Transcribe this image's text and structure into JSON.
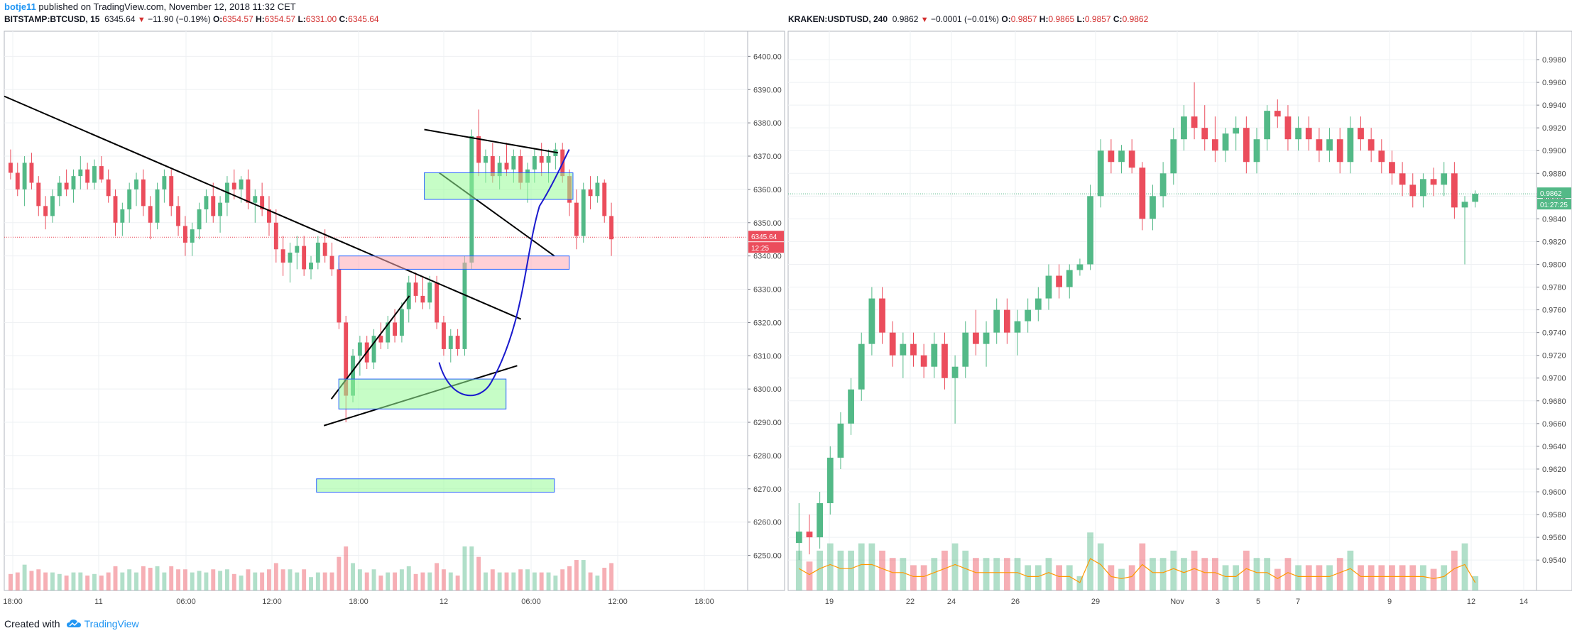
{
  "header": {
    "author": "botje11",
    "published": "published on TradingView.com, November 12, 2018 11:32 CET"
  },
  "footer": {
    "created_with": "Created with",
    "brand": "TradingView"
  },
  "panels": {
    "left": {
      "symbol": "BITSTAMP:BTCUSD, 15",
      "last": "6345.64",
      "change": "−11.90 (−0.19%)",
      "o_label": "O:",
      "o": "6354.57",
      "h_label": "H:",
      "h": "6354.57",
      "l_label": "L:",
      "l": "6331.00",
      "c_label": "C:",
      "c": "6345.64",
      "price_badge": "6345.64",
      "timer_badge": "12:25"
    },
    "right": {
      "symbol": "KRAKEN:USDTUSD, 240",
      "last": "0.9862",
      "change": "−0.0001 (−0.01%)",
      "o_label": "O:",
      "o": "0.9857",
      "h_label": "H:",
      "h": "0.9865",
      "l_label": "L:",
      "l": "0.9857",
      "c_label": "C:",
      "c": "0.9862",
      "price_badge": "0.9862",
      "timer_badge": "01:27:25"
    }
  },
  "chart_data": [
    {
      "type": "candlestick",
      "symbol": "BITSTAMP:BTCUSD",
      "interval": "15",
      "y_ticks": [
        "6400.00",
        "6390.00",
        "6380.00",
        "6370.00",
        "6360.00",
        "6350.00",
        "6340.00",
        "6330.00",
        "6320.00",
        "6310.00",
        "6300.00",
        "6290.00",
        "6280.00",
        "6270.00",
        "6260.00",
        "6250.00"
      ],
      "ylim": [
        6245,
        6402
      ],
      "x_ticks": [
        "18:00",
        "11",
        "06:00",
        "12:00",
        "18:00",
        "12",
        "06:00",
        "12:00",
        "18:00"
      ],
      "last_price": 6345.64,
      "candles": [
        [
          6368,
          6372,
          6363,
          6365
        ],
        [
          6365,
          6368,
          6358,
          6360
        ],
        [
          6360,
          6370,
          6355,
          6368
        ],
        [
          6368,
          6371,
          6360,
          6362
        ],
        [
          6362,
          6364,
          6352,
          6355
        ],
        [
          6355,
          6358,
          6348,
          6352
        ],
        [
          6352,
          6360,
          6350,
          6358
        ],
        [
          6358,
          6364,
          6355,
          6362
        ],
        [
          6362,
          6366,
          6358,
          6360
        ],
        [
          6360,
          6366,
          6356,
          6364
        ],
        [
          6364,
          6370,
          6360,
          6366
        ],
        [
          6366,
          6368,
          6360,
          6362
        ],
        [
          6362,
          6369,
          6360,
          6367
        ],
        [
          6367,
          6370,
          6362,
          6363
        ],
        [
          6363,
          6366,
          6356,
          6358
        ],
        [
          6358,
          6360,
          6346,
          6350
        ],
        [
          6350,
          6356,
          6346,
          6354
        ],
        [
          6354,
          6362,
          6350,
          6360
        ],
        [
          6360,
          6365,
          6355,
          6363
        ],
        [
          6363,
          6366,
          6352,
          6355
        ],
        [
          6355,
          6358,
          6345,
          6350
        ],
        [
          6350,
          6362,
          6348,
          6360
        ],
        [
          6360,
          6366,
          6356,
          6364
        ],
        [
          6364,
          6366,
          6352,
          6355
        ],
        [
          6355,
          6358,
          6346,
          6349
        ],
        [
          6349,
          6352,
          6340,
          6344
        ],
        [
          6344,
          6350,
          6340,
          6348
        ],
        [
          6348,
          6356,
          6345,
          6354
        ],
        [
          6354,
          6360,
          6350,
          6358
        ],
        [
          6358,
          6362,
          6350,
          6352
        ],
        [
          6352,
          6358,
          6347,
          6356
        ],
        [
          6356,
          6364,
          6352,
          6362
        ],
        [
          6362,
          6366,
          6357,
          6360
        ],
        [
          6360,
          6364,
          6356,
          6363
        ],
        [
          6363,
          6366,
          6354,
          6356
        ],
        [
          6356,
          6360,
          6350,
          6358
        ],
        [
          6358,
          6362,
          6352,
          6354
        ],
        [
          6354,
          6358,
          6346,
          6350
        ],
        [
          6350,
          6354,
          6338,
          6342
        ],
        [
          6342,
          6346,
          6334,
          6338
        ],
        [
          6338,
          6344,
          6332,
          6341
        ],
        [
          6341,
          6346,
          6336,
          6343
        ],
        [
          6343,
          6346,
          6334,
          6336
        ],
        [
          6336,
          6340,
          6333,
          6338
        ],
        [
          6338,
          6346,
          6336,
          6344
        ],
        [
          6344,
          6348,
          6338,
          6340
        ],
        [
          6340,
          6344,
          6334,
          6336
        ],
        [
          6336,
          6338,
          6318,
          6320
        ],
        [
          6320,
          6322,
          6290,
          6298
        ],
        [
          6298,
          6312,
          6296,
          6310
        ],
        [
          6310,
          6316,
          6304,
          6314
        ],
        [
          6314,
          6316,
          6306,
          6308
        ],
        [
          6308,
          6318,
          6306,
          6316
        ],
        [
          6316,
          6320,
          6312,
          6314
        ],
        [
          6314,
          6322,
          6312,
          6320
        ],
        [
          6320,
          6324,
          6314,
          6316
        ],
        [
          6316,
          6326,
          6314,
          6324
        ],
        [
          6324,
          6334,
          6320,
          6332
        ],
        [
          6332,
          6335,
          6326,
          6328
        ],
        [
          6328,
          6334,
          6324,
          6326
        ],
        [
          6326,
          6334,
          6324,
          6332
        ],
        [
          6332,
          6334,
          6318,
          6320
        ],
        [
          6320,
          6322,
          6310,
          6312
        ],
        [
          6312,
          6318,
          6308,
          6316
        ],
        [
          6316,
          6318,
          6310,
          6312
        ],
        [
          6312,
          6340,
          6310,
          6338
        ],
        [
          6338,
          6378,
          6336,
          6376
        ],
        [
          6376,
          6384,
          6364,
          6368
        ],
        [
          6368,
          6372,
          6362,
          6370
        ],
        [
          6370,
          6374,
          6362,
          6364
        ],
        [
          6364,
          6370,
          6360,
          6368
        ],
        [
          6368,
          6374,
          6364,
          6366
        ],
        [
          6366,
          6372,
          6362,
          6370
        ],
        [
          6370,
          6372,
          6360,
          6362
        ],
        [
          6362,
          6368,
          6356,
          6366
        ],
        [
          6366,
          6372,
          6362,
          6370
        ],
        [
          6370,
          6374,
          6364,
          6368
        ],
        [
          6368,
          6372,
          6362,
          6370
        ],
        [
          6370,
          6374,
          6366,
          6372
        ],
        [
          6372,
          6374,
          6362,
          6364
        ],
        [
          6364,
          6366,
          6352,
          6356
        ],
        [
          6356,
          6360,
          6342,
          6346
        ],
        [
          6346,
          6362,
          6344,
          6360
        ],
        [
          6360,
          6364,
          6354,
          6358
        ],
        [
          6358,
          6364,
          6356,
          6362
        ],
        [
          6362,
          6363,
          6350,
          6352
        ],
        [
          6352,
          6356,
          6340,
          6345
        ]
      ],
      "annotations": [
        {
          "kind": "trendline",
          "from": [
            0.0,
            6388
          ],
          "to": [
            0.695,
            6321
          ]
        },
        {
          "kind": "trendline",
          "from": [
            0.43,
            6289
          ],
          "to": [
            0.69,
            6307
          ]
        },
        {
          "kind": "trendline",
          "from": [
            0.44,
            6297
          ],
          "to": [
            0.545,
            6328
          ]
        },
        {
          "kind": "trendline",
          "from": [
            0.565,
            6378
          ],
          "to": [
            0.745,
            6371
          ]
        },
        {
          "kind": "trendline",
          "from": [
            0.585,
            6365
          ],
          "to": [
            0.74,
            6340
          ]
        },
        {
          "kind": "zone",
          "color": "green",
          "from": [
            0.565,
            6365
          ],
          "to": [
            0.765,
            6357
          ]
        },
        {
          "kind": "zone",
          "color": "red",
          "from": [
            0.45,
            6340
          ],
          "to": [
            0.76,
            6336
          ]
        },
        {
          "kind": "zone",
          "color": "green",
          "from": [
            0.45,
            6303
          ],
          "to": [
            0.675,
            6294
          ]
        },
        {
          "kind": "zone",
          "color": "green",
          "from": [
            0.42,
            6273
          ],
          "to": [
            0.74,
            6269
          ]
        }
      ]
    },
    {
      "type": "candlestick",
      "symbol": "KRAKEN:USDTUSD",
      "interval": "240",
      "y_ticks": [
        "0.9980",
        "0.9960",
        "0.9940",
        "0.9920",
        "0.9900",
        "0.9880",
        "0.9860",
        "0.9840",
        "0.9820",
        "0.9800",
        "0.9780",
        "0.9760",
        "0.9740",
        "0.9720",
        "0.9700",
        "0.9680",
        "0.9660",
        "0.9640",
        "0.9620",
        "0.9600",
        "0.9580",
        "0.9560",
        "0.9540"
      ],
      "ylim": [
        0.9522,
        0.999
      ],
      "x_ticks": [
        "19",
        "22",
        "24",
        "26",
        "29",
        "Nov",
        "3",
        "5",
        "7",
        "9",
        "12",
        "14"
      ],
      "last_price": 0.9862,
      "candles": [
        [
          0.9555,
          0.959,
          0.954,
          0.9565
        ],
        [
          0.9565,
          0.958,
          0.9545,
          0.956
        ],
        [
          0.956,
          0.96,
          0.955,
          0.959
        ],
        [
          0.959,
          0.964,
          0.958,
          0.963
        ],
        [
          0.963,
          0.967,
          0.962,
          0.966
        ],
        [
          0.966,
          0.97,
          0.965,
          0.969
        ],
        [
          0.969,
          0.974,
          0.968,
          0.973
        ],
        [
          0.973,
          0.978,
          0.972,
          0.977
        ],
        [
          0.977,
          0.978,
          0.973,
          0.974
        ],
        [
          0.974,
          0.975,
          0.971,
          0.972
        ],
        [
          0.972,
          0.974,
          0.97,
          0.973
        ],
        [
          0.973,
          0.974,
          0.971,
          0.972
        ],
        [
          0.972,
          0.973,
          0.97,
          0.971
        ],
        [
          0.971,
          0.974,
          0.97,
          0.973
        ],
        [
          0.973,
          0.974,
          0.969,
          0.97
        ],
        [
          0.97,
          0.972,
          0.966,
          0.971
        ],
        [
          0.971,
          0.975,
          0.97,
          0.974
        ],
        [
          0.974,
          0.976,
          0.972,
          0.973
        ],
        [
          0.973,
          0.975,
          0.971,
          0.974
        ],
        [
          0.974,
          0.977,
          0.973,
          0.976
        ],
        [
          0.976,
          0.977,
          0.973,
          0.974
        ],
        [
          0.974,
          0.976,
          0.972,
          0.975
        ],
        [
          0.975,
          0.977,
          0.974,
          0.976
        ],
        [
          0.976,
          0.978,
          0.975,
          0.977
        ],
        [
          0.977,
          0.98,
          0.976,
          0.979
        ],
        [
          0.979,
          0.98,
          0.977,
          0.978
        ],
        [
          0.978,
          0.98,
          0.977,
          0.9795
        ],
        [
          0.9795,
          0.9805,
          0.979,
          0.98
        ],
        [
          0.98,
          0.987,
          0.9795,
          0.986
        ],
        [
          0.986,
          0.991,
          0.985,
          0.99
        ],
        [
          0.99,
          0.991,
          0.988,
          0.989
        ],
        [
          0.989,
          0.9905,
          0.988,
          0.99
        ],
        [
          0.99,
          0.991,
          0.988,
          0.9885
        ],
        [
          0.9885,
          0.989,
          0.983,
          0.984
        ],
        [
          0.984,
          0.987,
          0.983,
          0.986
        ],
        [
          0.986,
          0.989,
          0.985,
          0.988
        ],
        [
          0.988,
          0.992,
          0.987,
          0.991
        ],
        [
          0.991,
          0.994,
          0.99,
          0.993
        ],
        [
          0.993,
          0.996,
          0.991,
          0.992
        ],
        [
          0.992,
          0.994,
          0.99,
          0.991
        ],
        [
          0.991,
          0.993,
          0.989,
          0.99
        ],
        [
          0.99,
          0.992,
          0.989,
          0.9915
        ],
        [
          0.9915,
          0.993,
          0.99,
          0.992
        ],
        [
          0.992,
          0.993,
          0.988,
          0.989
        ],
        [
          0.989,
          0.992,
          0.988,
          0.991
        ],
        [
          0.991,
          0.994,
          0.99,
          0.9935
        ],
        [
          0.9935,
          0.9945,
          0.992,
          0.993
        ],
        [
          0.993,
          0.994,
          0.99,
          0.991
        ],
        [
          0.991,
          0.993,
          0.99,
          0.992
        ],
        [
          0.992,
          0.993,
          0.99,
          0.991
        ],
        [
          0.991,
          0.992,
          0.989,
          0.99
        ],
        [
          0.99,
          0.992,
          0.989,
          0.991
        ],
        [
          0.991,
          0.992,
          0.988,
          0.989
        ],
        [
          0.989,
          0.993,
          0.988,
          0.992
        ],
        [
          0.992,
          0.993,
          0.99,
          0.991
        ],
        [
          0.991,
          0.992,
          0.989,
          0.99
        ],
        [
          0.99,
          0.991,
          0.988,
          0.989
        ],
        [
          0.989,
          0.99,
          0.987,
          0.988
        ],
        [
          0.988,
          0.989,
          0.986,
          0.987
        ],
        [
          0.987,
          0.988,
          0.985,
          0.986
        ],
        [
          0.986,
          0.988,
          0.985,
          0.9875
        ],
        [
          0.9875,
          0.9885,
          0.986,
          0.987
        ],
        [
          0.987,
          0.989,
          0.986,
          0.988
        ],
        [
          0.988,
          0.989,
          0.984,
          0.985
        ],
        [
          0.985,
          0.986,
          0.98,
          0.9855
        ],
        [
          0.9855,
          0.9865,
          0.985,
          0.9862
        ]
      ]
    }
  ]
}
